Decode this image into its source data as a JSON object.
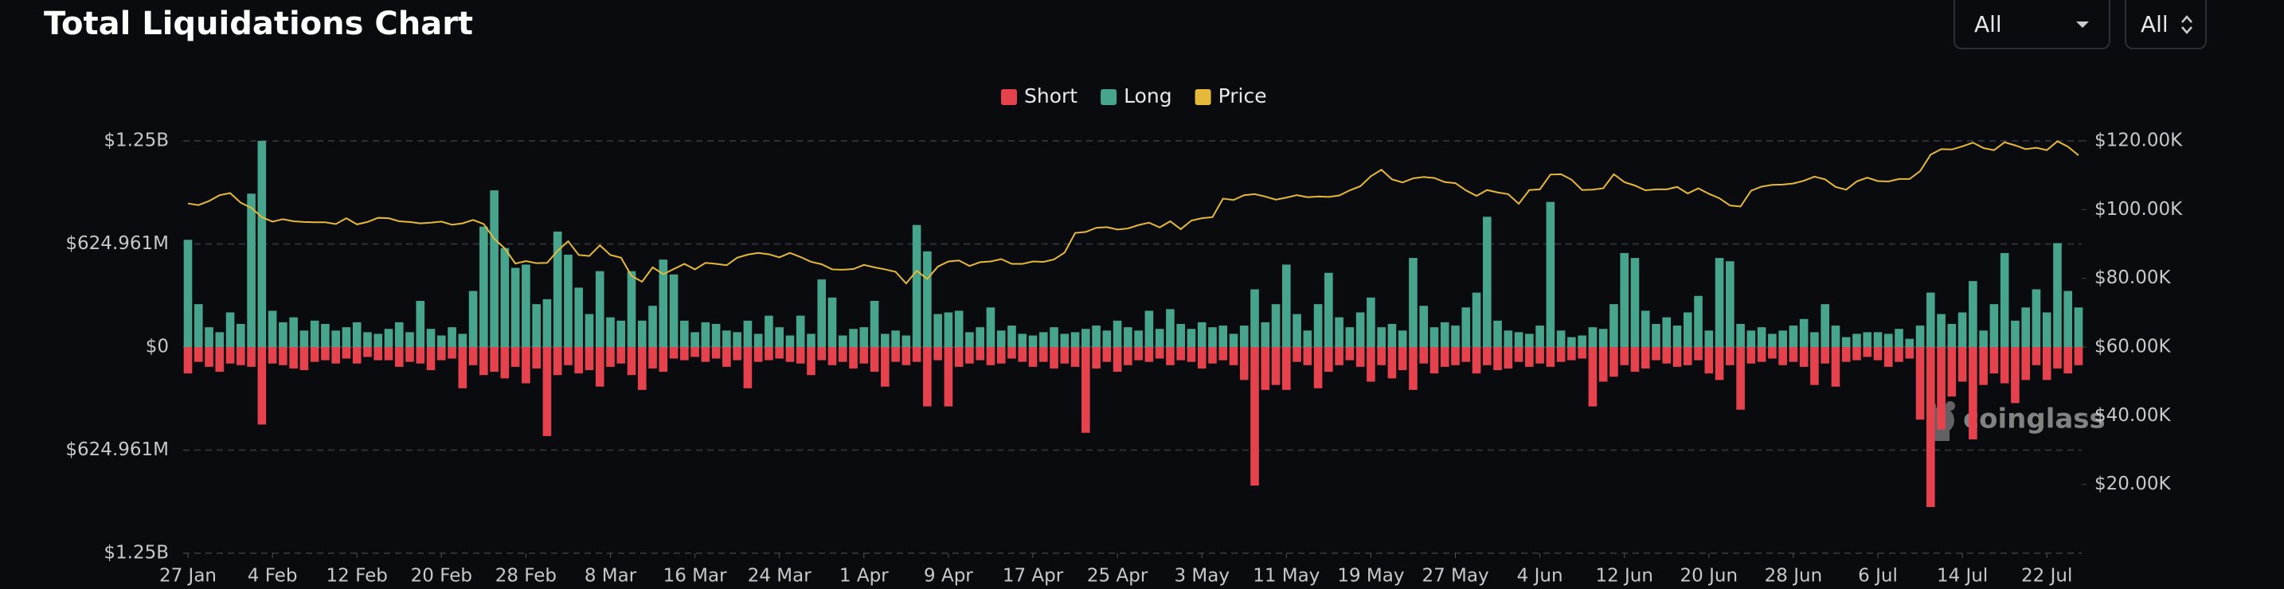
{
  "chart_data": {
    "type": "bar",
    "title": "Total Liquidations Chart",
    "categories": [
      "27 Jan",
      null,
      null,
      null,
      null,
      null,
      null,
      null,
      "4 Feb",
      null,
      null,
      null,
      null,
      null,
      null,
      null,
      "12 Feb",
      null,
      null,
      null,
      null,
      null,
      null,
      null,
      "20 Feb",
      null,
      null,
      null,
      null,
      null,
      null,
      null,
      "28 Feb",
      null,
      null,
      null,
      null,
      null,
      null,
      null,
      "8 Mar",
      null,
      null,
      null,
      null,
      null,
      null,
      null,
      "16 Mar",
      null,
      null,
      null,
      null,
      null,
      null,
      null,
      "24 Mar",
      null,
      null,
      null,
      null,
      null,
      null,
      null,
      "1 Apr",
      null,
      null,
      null,
      null,
      null,
      null,
      null,
      "9 Apr",
      null,
      null,
      null,
      null,
      null,
      null,
      null,
      "17 Apr",
      null,
      null,
      null,
      null,
      null,
      null,
      null,
      "25 Apr",
      null,
      null,
      null,
      null,
      null,
      null,
      null,
      "3 May",
      null,
      null,
      null,
      null,
      null,
      null,
      null,
      "11 May",
      null,
      null,
      null,
      null,
      null,
      null,
      null,
      "19 May",
      null,
      null,
      null,
      null,
      null,
      null,
      null,
      "27 May",
      null,
      null,
      null,
      null,
      null,
      null,
      null,
      "4 Jun",
      null,
      null,
      null,
      null,
      null,
      null,
      null,
      "12 Jun",
      null,
      null,
      null,
      null,
      null,
      null,
      null,
      "20 Jun",
      null,
      null,
      null,
      null,
      null,
      null,
      null,
      "28 Jun",
      null,
      null,
      null,
      null,
      null,
      null,
      null,
      "6 Jul",
      null,
      null,
      null,
      null,
      null,
      null,
      null,
      "14 Jul",
      null,
      null,
      null,
      null,
      null,
      null,
      null,
      "22 Jul",
      null,
      null,
      null
    ],
    "series": [
      {
        "name": "Short",
        "color": "#e5424e",
        "values": [
          -160000000.0,
          -90000000.0,
          -120000000.0,
          -150000000.0,
          -100000000.0,
          -110000000.0,
          -120000000.0,
          -470000000.0,
          -100000000.0,
          -110000000.0,
          -130000000.0,
          -140000000.0,
          -90000000.0,
          -80000000.0,
          -100000000.0,
          -70000000.0,
          -100000000.0,
          -60000000.0,
          -80000000.0,
          -80000000.0,
          -120000000.0,
          -90000000.0,
          -100000000.0,
          -140000000.0,
          -80000000.0,
          -70000000.0,
          -250000000.0,
          -110000000.0,
          -170000000.0,
          -150000000.0,
          -190000000.0,
          -120000000.0,
          -220000000.0,
          -130000000.0,
          -540000000.0,
          -170000000.0,
          -110000000.0,
          -160000000.0,
          -140000000.0,
          -240000000.0,
          -120000000.0,
          -100000000.0,
          -170000000.0,
          -260000000.0,
          -130000000.0,
          -150000000.0,
          -70000000.0,
          -80000000.0,
          -60000000.0,
          -90000000.0,
          -70000000.0,
          -120000000.0,
          -80000000.0,
          -250000000.0,
          -90000000.0,
          -80000000.0,
          -70000000.0,
          -90000000.0,
          -100000000.0,
          -170000000.0,
          -80000000.0,
          -110000000.0,
          -90000000.0,
          -130000000.0,
          -100000000.0,
          -150000000.0,
          -240000000.0,
          -90000000.0,
          -110000000.0,
          -90000000.0,
          -360000000.0,
          -80000000.0,
          -360000000.0,
          -120000000.0,
          -100000000.0,
          -80000000.0,
          -110000000.0,
          -100000000.0,
          -70000000.0,
          -90000000.0,
          -120000000.0,
          -90000000.0,
          -130000000.0,
          -100000000.0,
          -120000000.0,
          -520000000.0,
          -130000000.0,
          -90000000.0,
          -150000000.0,
          -110000000.0,
          -80000000.0,
          -90000000.0,
          -70000000.0,
          -110000000.0,
          -80000000.0,
          -90000000.0,
          -130000000.0,
          -100000000.0,
          -80000000.0,
          -110000000.0,
          -200000000.0,
          -840000000.0,
          -260000000.0,
          -230000000.0,
          -260000000.0,
          -90000000.0,
          -110000000.0,
          -250000000.0,
          -150000000.0,
          -110000000.0,
          -80000000.0,
          -120000000.0,
          -210000000.0,
          -110000000.0,
          -190000000.0,
          -140000000.0,
          -260000000.0,
          -100000000.0,
          -160000000.0,
          -120000000.0,
          -110000000.0,
          -90000000.0,
          -160000000.0,
          -110000000.0,
          -140000000.0,
          -130000000.0,
          -90000000.0,
          -120000000.0,
          -100000000.0,
          -120000000.0,
          -90000000.0,
          -80000000.0,
          -70000000.0,
          -360000000.0,
          -210000000.0,
          -180000000.0,
          -110000000.0,
          -150000000.0,
          -130000000.0,
          -80000000.0,
          -100000000.0,
          -120000000.0,
          -110000000.0,
          -80000000.0,
          -160000000.0,
          -200000000.0,
          -110000000.0,
          -380000000.0,
          -100000000.0,
          -90000000.0,
          -70000000.0,
          -110000000.0,
          -90000000.0,
          -120000000.0,
          -230000000.0,
          -100000000.0,
          -240000000.0,
          -90000000.0,
          -80000000.0,
          -60000000.0,
          -80000000.0,
          -120000000.0,
          -90000000.0,
          -70000000.0,
          -440000000.0,
          -970000000.0,
          -500000000.0,
          -300000000.0,
          -210000000.0,
          -560000000.0,
          -230000000.0,
          -160000000.0,
          -220000000.0,
          -340000000.0,
          -200000000.0,
          -110000000.0,
          -200000000.0,
          -130000000.0,
          -160000000.0,
          -110000000.0
        ]
      },
      {
        "name": "Long",
        "color": "#46a58c",
        "values": [
          650000000.0,
          260000000.0,
          120000000.0,
          90000000.0,
          210000000.0,
          140000000.0,
          930000000.0,
          1250000000.0,
          220000000.0,
          150000000.0,
          180000000.0,
          100000000.0,
          160000000.0,
          140000000.0,
          100000000.0,
          120000000.0,
          150000000.0,
          90000000.0,
          80000000.0,
          110000000.0,
          150000000.0,
          90000000.0,
          280000000.0,
          110000000.0,
          70000000.0,
          120000000.0,
          80000000.0,
          340000000.0,
          730000000.0,
          950000000.0,
          600000000.0,
          480000000.0,
          500000000.0,
          260000000.0,
          290000000.0,
          700000000.0,
          560000000.0,
          360000000.0,
          200000000.0,
          460000000.0,
          180000000.0,
          160000000.0,
          460000000.0,
          160000000.0,
          250000000.0,
          530000000.0,
          440000000.0,
          160000000.0,
          90000000.0,
          150000000.0,
          140000000.0,
          100000000.0,
          90000000.0,
          160000000.0,
          80000000.0,
          190000000.0,
          120000000.0,
          70000000.0,
          190000000.0,
          80000000.0,
          410000000.0,
          300000000.0,
          70000000.0,
          110000000.0,
          120000000.0,
          280000000.0,
          80000000.0,
          100000000.0,
          70000000.0,
          740000000.0,
          580000000.0,
          200000000.0,
          210000000.0,
          220000000.0,
          90000000.0,
          120000000.0,
          240000000.0,
          100000000.0,
          130000000.0,
          80000000.0,
          70000000.0,
          90000000.0,
          120000000.0,
          80000000.0,
          90000000.0,
          110000000.0,
          130000000.0,
          100000000.0,
          160000000.0,
          120000000.0,
          100000000.0,
          220000000.0,
          110000000.0,
          230000000.0,
          140000000.0,
          110000000.0,
          150000000.0,
          120000000.0,
          130000000.0,
          80000000.0,
          130000000.0,
          350000000.0,
          150000000.0,
          260000000.0,
          500000000.0,
          200000000.0,
          100000000.0,
          260000000.0,
          450000000.0,
          180000000.0,
          120000000.0,
          210000000.0,
          300000000.0,
          120000000.0,
          140000000.0,
          100000000.0,
          540000000.0,
          250000000.0,
          120000000.0,
          150000000.0,
          130000000.0,
          240000000.0,
          330000000.0,
          790000000.0,
          160000000.0,
          100000000.0,
          90000000.0,
          80000000.0,
          130000000.0,
          880000000.0,
          100000000.0,
          60000000.0,
          70000000.0,
          120000000.0,
          110000000.0,
          260000000.0,
          570000000.0,
          540000000.0,
          220000000.0,
          140000000.0,
          180000000.0,
          130000000.0,
          210000000.0,
          310000000.0,
          100000000.0,
          540000000.0,
          520000000.0,
          140000000.0,
          100000000.0,
          120000000.0,
          80000000.0,
          100000000.0,
          130000000.0,
          170000000.0,
          90000000.0,
          260000000.0,
          130000000.0,
          60000000.0,
          80000000.0,
          90000000.0,
          90000000.0,
          80000000.0,
          110000000.0,
          50000000.0,
          130000000.0,
          330000000.0,
          200000000.0,
          140000000.0,
          210000000.0,
          400000000.0,
          100000000.0,
          260000000.0,
          570000000.0,
          160000000.0,
          240000000.0,
          350000000.0,
          210000000.0,
          630000000.0,
          340000000.0,
          240000000.0
        ]
      },
      {
        "name": "Price",
        "color": "#e6b93b",
        "type": "line",
        "axis": "y2",
        "values": [
          101800,
          101300,
          102500,
          104200,
          104800,
          102000,
          100500,
          97800,
          96500,
          97200,
          96600,
          96400,
          96300,
          96300,
          95800,
          97500,
          95700,
          96400,
          97600,
          97500,
          96600,
          96400,
          96000,
          96200,
          96500,
          95600,
          96000,
          97000,
          95800,
          91500,
          88700,
          84300,
          85000,
          84400,
          84500,
          88000,
          90800,
          86800,
          86500,
          89600,
          86800,
          86000,
          80700,
          79000,
          83200,
          81200,
          82700,
          84200,
          82600,
          84500,
          84200,
          83800,
          86000,
          86900,
          87400,
          87000,
          86100,
          87400,
          86200,
          84800,
          84100,
          82600,
          82500,
          82700,
          83900,
          83200,
          82600,
          81900,
          78500,
          82200,
          79800,
          83400,
          84900,
          85200,
          83600,
          84700,
          84900,
          85600,
          84200,
          84200,
          84900,
          84800,
          85500,
          87500,
          93200,
          93500,
          94700,
          94900,
          94200,
          94500,
          95500,
          96200,
          94800,
          96600,
          94300,
          96800,
          97500,
          97800,
          103200,
          102800,
          104200,
          104500,
          103800,
          102900,
          103500,
          104200,
          103600,
          103800,
          103700,
          104100,
          105600,
          106800,
          109700,
          111600,
          108800,
          107900,
          109100,
          109500,
          109200,
          108000,
          107700,
          105600,
          104000,
          105700,
          105000,
          104500,
          101700,
          105700,
          105900,
          110200,
          110300,
          108700,
          105700,
          105800,
          106200,
          110300,
          108000,
          107000,
          105600,
          105900,
          105900,
          106600,
          104700,
          106200,
          104600,
          103300,
          101200,
          100900,
          105500,
          106700,
          107200,
          107300,
          107600,
          108400,
          109600,
          108800,
          106600,
          105800,
          108200,
          109300,
          108300,
          108200,
          108900,
          108900,
          111200,
          116000,
          117600,
          117500,
          118400,
          119500,
          117900,
          117300,
          119600,
          118700,
          117600,
          118000,
          117300,
          119900,
          118300,
          115800
        ]
      }
    ],
    "ylim": [
      -1249922000,
      1249922000
    ],
    "yticks": [
      {
        "value": 1249922000,
        "label": "$1.25B"
      },
      {
        "value": 624961000,
        "label": "$624.961M"
      },
      {
        "value": 0,
        "label": "$0"
      },
      {
        "value": -624961000,
        "label": "$624.961M"
      },
      {
        "value": -1249922000,
        "label": "$1.25B"
      }
    ],
    "y2lim": [
      0,
      120000
    ],
    "y2ticks": [
      {
        "value": 120000,
        "label": "$120.00K"
      },
      {
        "value": 100000,
        "label": "$100.00K"
      },
      {
        "value": 80000,
        "label": "$80.00K"
      },
      {
        "value": 60000,
        "label": "$60.00K"
      },
      {
        "value": 40000,
        "label": "$40.00K"
      },
      {
        "value": 20000,
        "label": "$20.00K"
      }
    ],
    "grid": true,
    "legend": "top"
  },
  "controls": [
    "All",
    "All"
  ],
  "watermark": "coinglass"
}
